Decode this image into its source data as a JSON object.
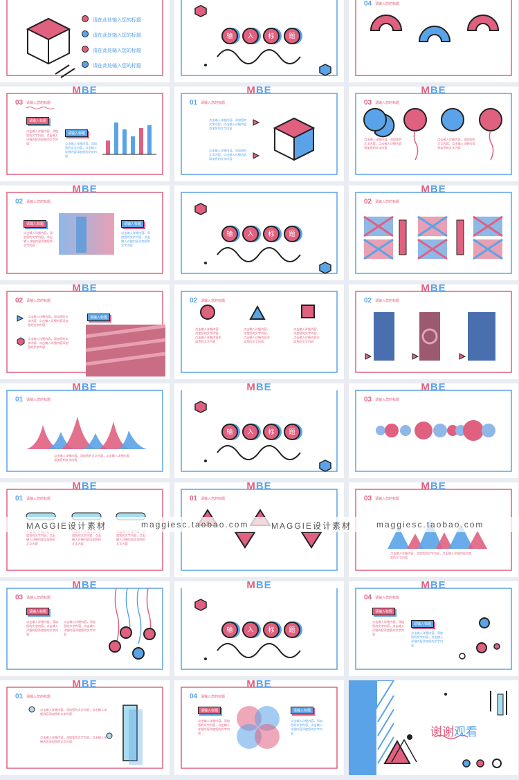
{
  "brand": {
    "m": "M",
    "b": "B",
    "e": "E"
  },
  "colors": {
    "pink": "#e0607f",
    "blue": "#5aa3e8",
    "ink": "#222222"
  },
  "slides": {
    "s1": {
      "items": [
        "请在此处输入您的标题",
        "请在此处输入您的标题",
        "请在此处输入您的标题",
        "请在此处输入您的标题"
      ]
    },
    "title_chars": [
      "输",
      "入",
      "标",
      "题"
    ],
    "sub": "请输入您的标题",
    "tag": "请输入标题",
    "para": "点击输入详细内容，添加您的文字内容，点击输入详细内容添加您的文字内容",
    "nums": {
      "n01": "01",
      "n02": "02",
      "n03": "03",
      "n04": "04"
    }
  },
  "watermark": {
    "a": "MAGGIE设计素材",
    "b": "maggiesc.taobao.com",
    "c": "MAGGIE设计素材",
    "d": "maggiesc.taobao.com"
  },
  "thanks": {
    "p1": "谢谢",
    "p2": "观看"
  }
}
